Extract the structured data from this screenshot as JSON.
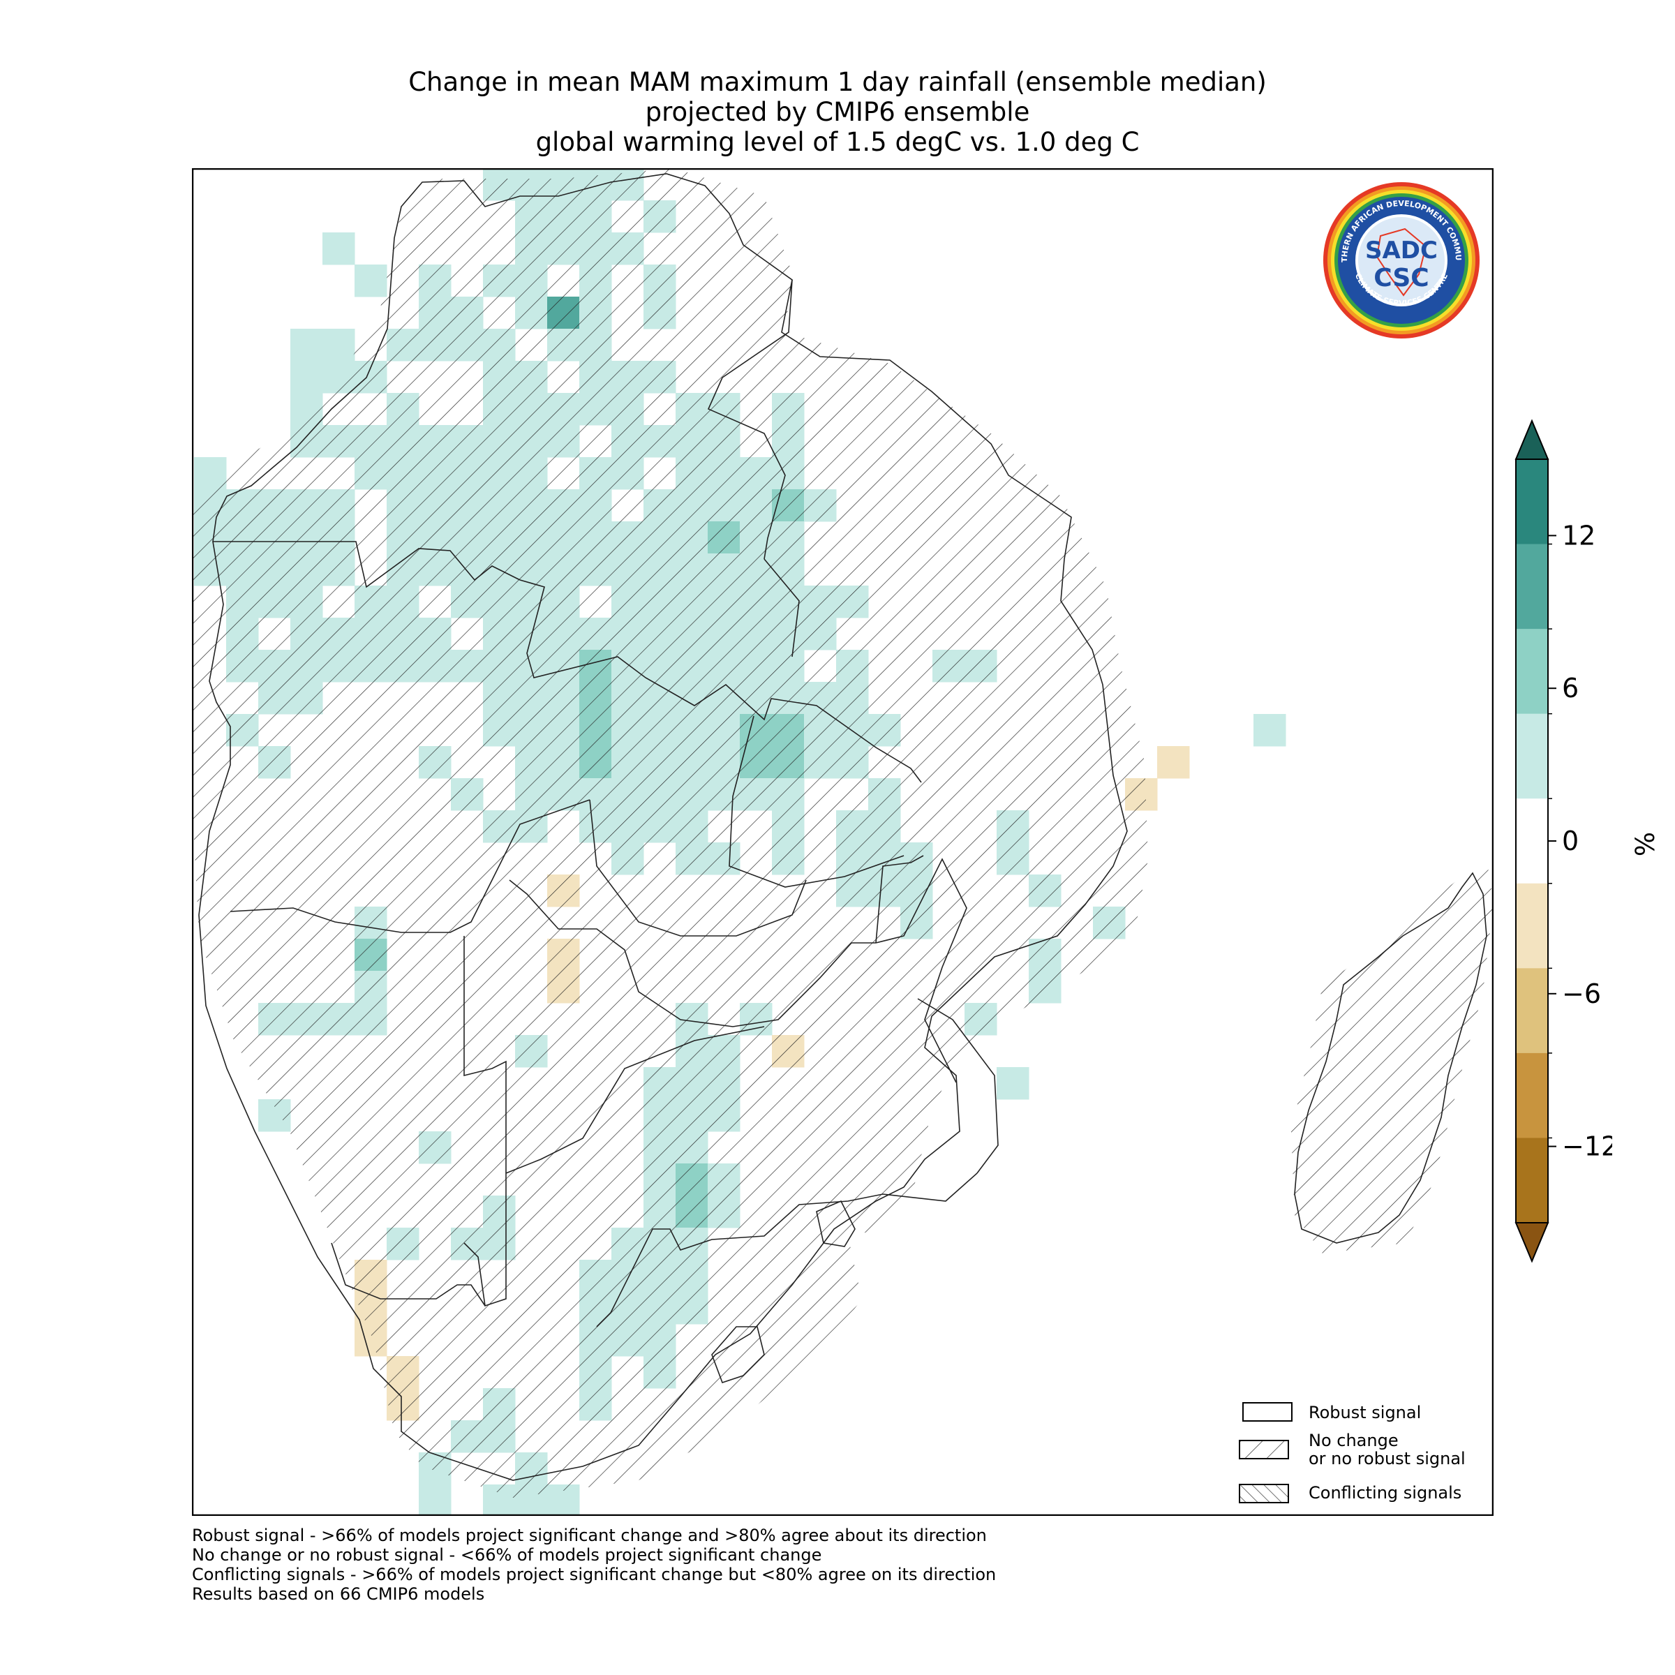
{
  "title": {
    "lines": [
      "Change in mean MAM maximum 1 day rainfall (ensemble median)",
      "projected by CMIP6 ensemble",
      "global warming level of 1.5 degC vs. 1.0 deg C"
    ]
  },
  "colorbar": {
    "unit": "%",
    "ticks": [
      "12",
      "6",
      "0",
      "−6",
      "−12"
    ],
    "tick_values": [
      12,
      6,
      0,
      -6,
      -12
    ],
    "range": [
      -15,
      15
    ],
    "extend": "both",
    "colors": [
      "#a8741c",
      "#c8943e",
      "#dfc27d",
      "#f3e3c0",
      "#ffffff",
      "#c7eae5",
      "#8ed1c5",
      "#52a89d",
      "#2a877d"
    ],
    "arrow_top_color": "#1a6158",
    "arrow_bottom_color": "#8a5412"
  },
  "legend": {
    "items": [
      {
        "label": "Robust signal",
        "pattern": "none"
      },
      {
        "label_lines": [
          "No change",
          "or no robust signal"
        ],
        "pattern": "forward-hatch"
      },
      {
        "label": "Conflicting signals",
        "pattern": "back-hatch"
      }
    ]
  },
  "notes": [
    "Robust signal - >66% of models project significant change and >80% agree about its direction",
    "No change or no robust signal - <66% of models project significant change",
    "Conflicting signals - >66% of models project significant change but <80% agree on its direction",
    "Results based on 66 CMIP6 models"
  ],
  "logo": {
    "top_text": "SOUTHERN AFRICAN DEVELOPMENT COMMUNITY",
    "bottom_text": "CLIMATE SERVICES CENTRE",
    "mark_top": "SADC",
    "mark_bottom": "CSC"
  },
  "map": {
    "region": "Southern Africa",
    "colors": {
      "light_teal": "#c7eae5",
      "teal": "#8ed1c5",
      "dark_teal": "#52a89d",
      "light_tan": "#f3e3c0"
    }
  }
}
